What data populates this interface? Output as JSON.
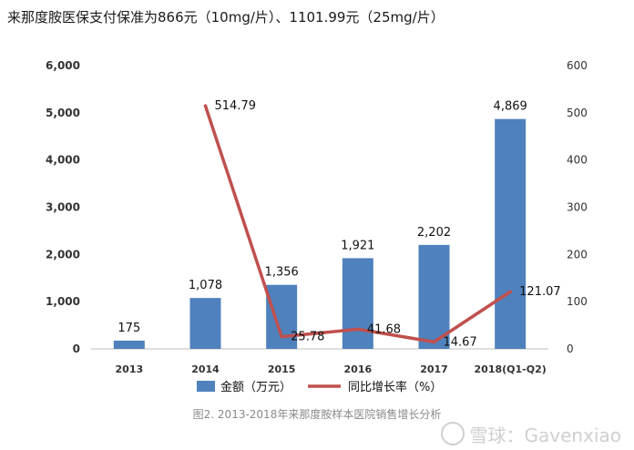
{
  "headline": "来那度胺医保支付保准为866元（10mg/片）、1101.99元（25mg/片）",
  "caption": "图2. 2013-2018年来那度胺样本医院销售增长分析",
  "watermark": "雪球：Gavenxiao",
  "colors": {
    "bar": "#4f81bd",
    "line": "#c0504d",
    "axis": "#bfbfbf",
    "text": "#333333"
  },
  "chart_data": {
    "type": "bar",
    "categories": [
      "2013",
      "2014",
      "2015",
      "2016",
      "2017",
      "2018(Q1-Q2)"
    ],
    "ylim": [
      0,
      6000
    ],
    "y2lim": [
      0,
      600
    ],
    "yticks": [
      "0",
      "1,000",
      "2,000",
      "3,000",
      "4,000",
      "5,000",
      "6,000"
    ],
    "y2ticks": [
      "0",
      "100",
      "200",
      "300",
      "400",
      "500",
      "600"
    ],
    "legend_position": "bottom",
    "grid": false,
    "series": [
      {
        "name": "金额（万元）",
        "kind": "bar",
        "axis": "left",
        "values": [
          175,
          1078,
          1356,
          1921,
          2202,
          4869
        ],
        "labels": [
          "175",
          "1,078",
          "1,356",
          "1,921",
          "2,202",
          "4,869"
        ]
      },
      {
        "name": "同比增长率（%）",
        "kind": "line",
        "axis": "right",
        "values": [
          null,
          514.79,
          25.78,
          41.68,
          14.67,
          121.07
        ],
        "labels": [
          "",
          "514.79",
          "25.78",
          "41.68",
          "14.67",
          "121.07"
        ]
      }
    ]
  }
}
